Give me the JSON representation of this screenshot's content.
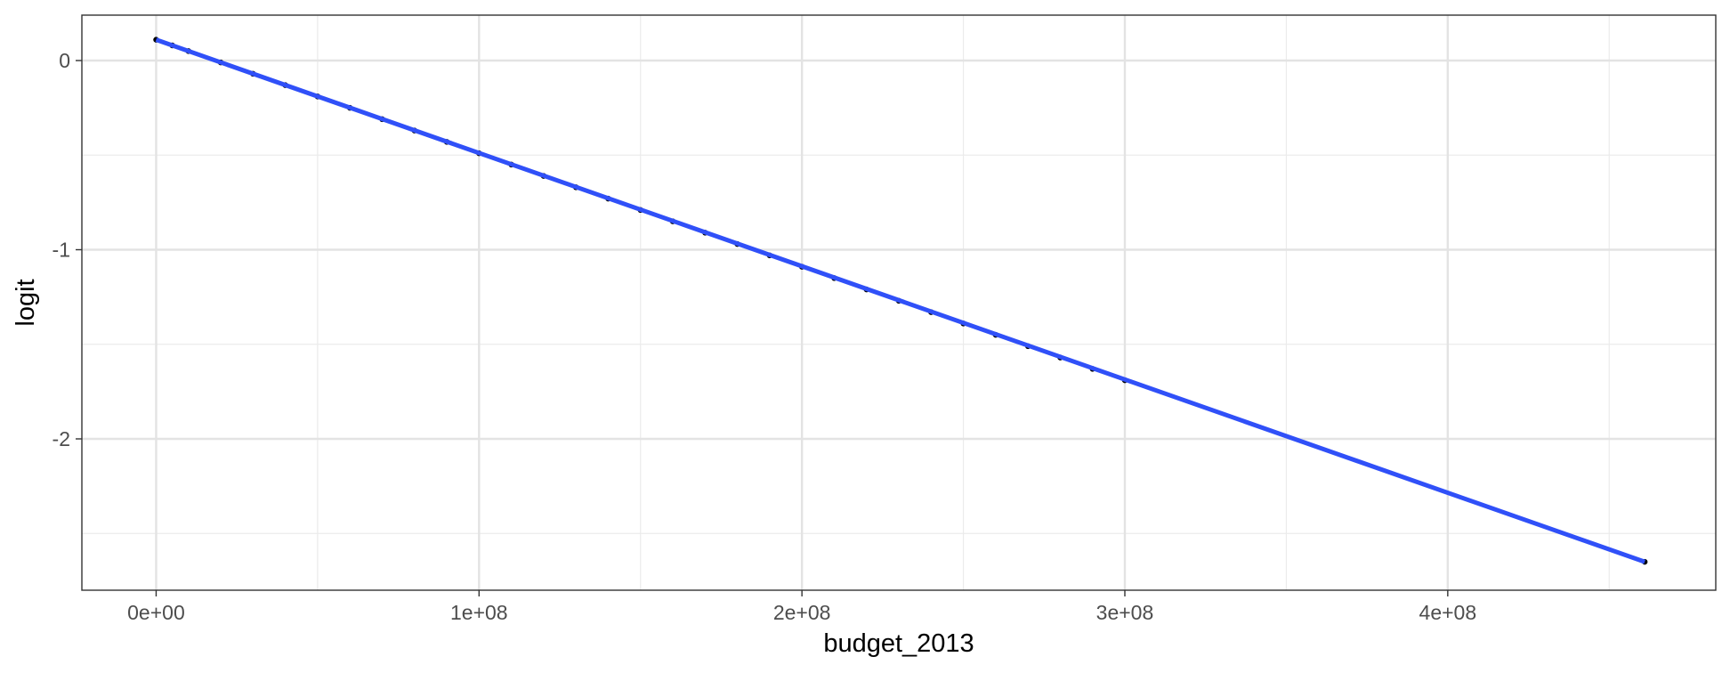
{
  "chart_data": {
    "type": "scatter",
    "title": "",
    "xlabel": "budget_2013",
    "ylabel": "logit",
    "xlim": [
      -23000000,
      483000000
    ],
    "ylim": [
      -2.8,
      0.24
    ],
    "x_ticks": [
      0,
      100000000,
      200000000,
      300000000,
      400000000
    ],
    "x_tick_labels": [
      "0e+00",
      "1e+08",
      "2e+08",
      "3e+08",
      "4e+08"
    ],
    "y_ticks": [
      0,
      -1,
      -2
    ],
    "y_tick_labels": [
      "0",
      "-1",
      "-2"
    ],
    "grid": true,
    "theme": "bw",
    "series": [
      {
        "kind": "points",
        "color": "#000000",
        "x": [
          1000,
          5000000,
          10000000,
          20000000,
          30000000,
          40000000,
          50000000,
          60000000,
          70000000,
          80000000,
          90000000,
          100000000,
          110000000,
          120000000,
          130000000,
          140000000,
          150000000,
          160000000,
          170000000,
          180000000,
          190000000,
          200000000,
          210000000,
          220000000,
          230000000,
          240000000,
          250000000,
          260000000,
          270000000,
          280000000,
          290000000,
          300000000,
          461000000
        ],
        "y": [
          0.11,
          0.08,
          0.05,
          -0.01,
          -0.07,
          -0.13,
          -0.19,
          -0.25,
          -0.31,
          -0.37,
          -0.43,
          -0.49,
          -0.55,
          -0.61,
          -0.67,
          -0.73,
          -0.79,
          -0.85,
          -0.91,
          -0.97,
          -1.03,
          -1.09,
          -1.15,
          -1.21,
          -1.27,
          -1.33,
          -1.39,
          -1.45,
          -1.51,
          -1.57,
          -1.63,
          -1.69,
          -2.65
        ]
      },
      {
        "kind": "line",
        "color": "#3050f8",
        "x": [
          0,
          461000000
        ],
        "y": [
          0.11,
          -2.65
        ]
      }
    ]
  }
}
